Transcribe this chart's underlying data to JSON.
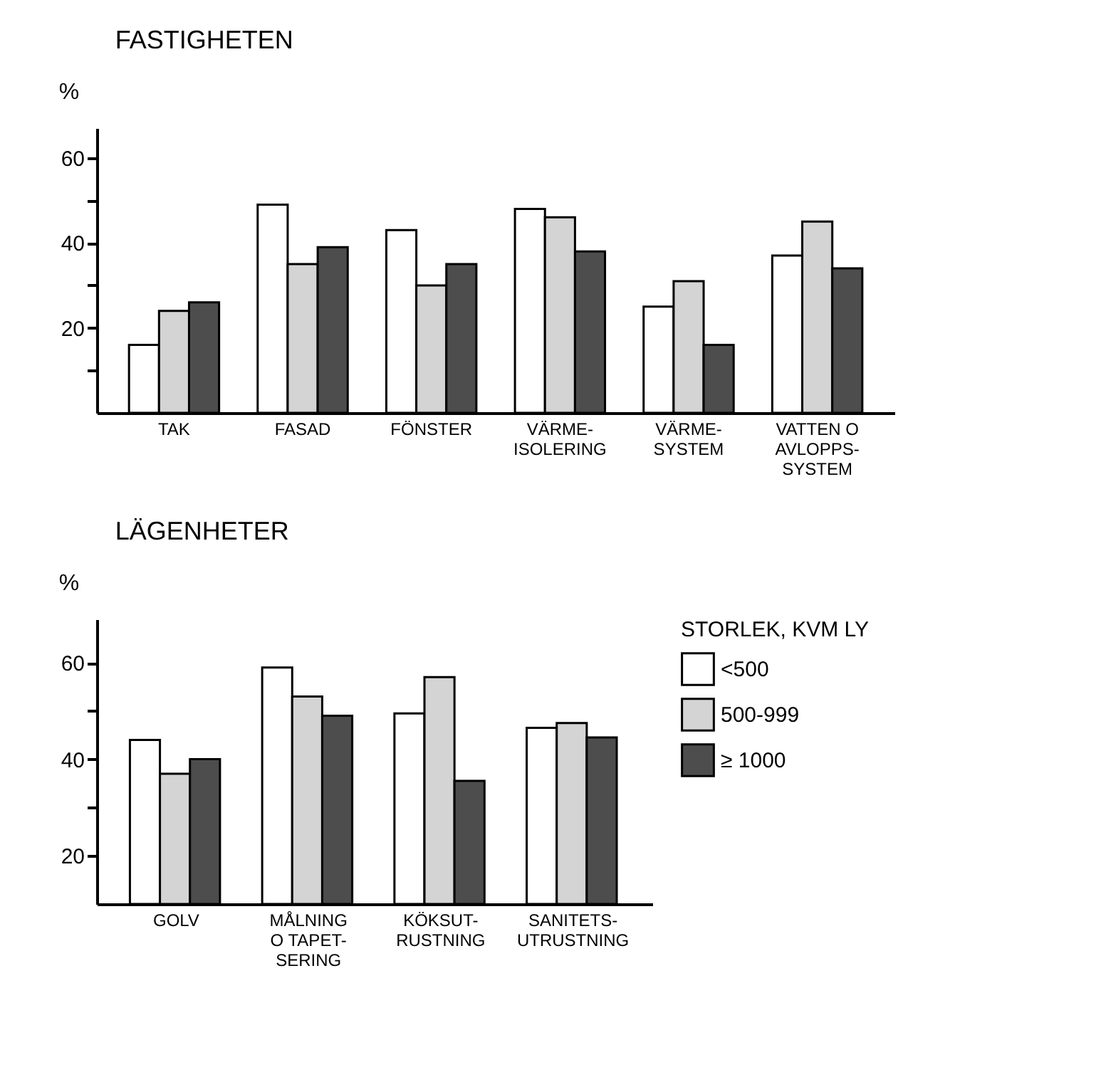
{
  "chart_data": [
    {
      "type": "bar",
      "title": "FASTIGHETEN",
      "ylabel": "%",
      "categories": [
        "TAK",
        "FASAD",
        "FÖNSTER",
        "VÄRME-\nISOLERING",
        "VÄRME-\nSYSTEM",
        "VATTEN O\nAVLOPPS-\nSYSTEM"
      ],
      "series": [
        {
          "color": "#ffffff",
          "values": [
            16,
            49,
            43,
            48,
            25,
            37
          ]
        },
        {
          "color": "#d4d4d4",
          "values": [
            24,
            35,
            30,
            46,
            31,
            45
          ]
        },
        {
          "color": "#4d4d4d",
          "values": [
            26,
            39,
            35,
            38,
            16,
            34
          ]
        }
      ],
      "ylim": [
        0,
        67
      ],
      "yticks": [
        {
          "value": 10,
          "label": null
        },
        20,
        {
          "value": 30,
          "label": null
        },
        40,
        {
          "value": 50,
          "label": null
        },
        60
      ]
    },
    {
      "type": "bar",
      "title": "LÄGENHETER",
      "ylabel": "%",
      "categories": [
        "GOLV",
        "MÅLNING\nO TAPET-\nSERING",
        "KÖKSUT-\nRUSTNING",
        "SANITETS-\nUTRUSTNING"
      ],
      "series": [
        {
          "name": "<500",
          "color": "#ffffff",
          "values": [
            44,
            59,
            49.5,
            46.5
          ]
        },
        {
          "name": "500-999",
          "color": "#d4d4d4",
          "values": [
            37,
            53,
            57,
            47.5
          ]
        },
        {
          "name": "≥ 1000",
          "color": "#4d4d4d",
          "values": [
            40,
            49,
            35.5,
            44.5
          ]
        }
      ],
      "ylim": [
        10,
        69
      ],
      "yticks": [
        20,
        {
          "value": 30,
          "label": null
        },
        40,
        {
          "value": 50,
          "label": null
        },
        60
      ],
      "legend": "right",
      "legend_title": "STORLEK, KVM LY"
    }
  ]
}
